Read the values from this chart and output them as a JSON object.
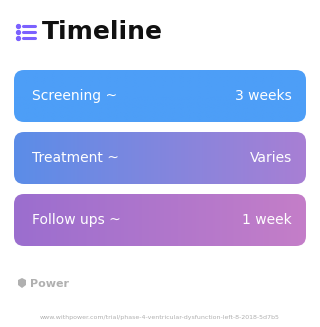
{
  "title": "Timeline",
  "title_fontsize": 18,
  "title_fontweight": "bold",
  "title_color": "#111111",
  "icon_color": "#7b61ff",
  "background_color": "#ffffff",
  "rows": [
    {
      "label": "Screening ~",
      "value": "3 weeks",
      "color_left": "#4d9ef7",
      "color_right": "#4d9ef7"
    },
    {
      "label": "Treatment ~",
      "value": "Varies",
      "color_left": "#5b8de8",
      "color_right": "#a87fd4"
    },
    {
      "label": "Follow ups ~",
      "value": "1 week",
      "color_left": "#9b6ecf",
      "color_right": "#c47ec8"
    }
  ],
  "label_fontsize": 10,
  "value_fontsize": 10,
  "text_color": "#ffffff",
  "watermark_text": "Power",
  "watermark_fontsize": 8,
  "watermark_color": "#b0b0b0",
  "url_text": "www.withpower.com/trial/phase-4-ventricular-dysfunction-left-8-2018-5d7b5",
  "url_fontsize": 4.5,
  "url_color": "#b0b0b0"
}
